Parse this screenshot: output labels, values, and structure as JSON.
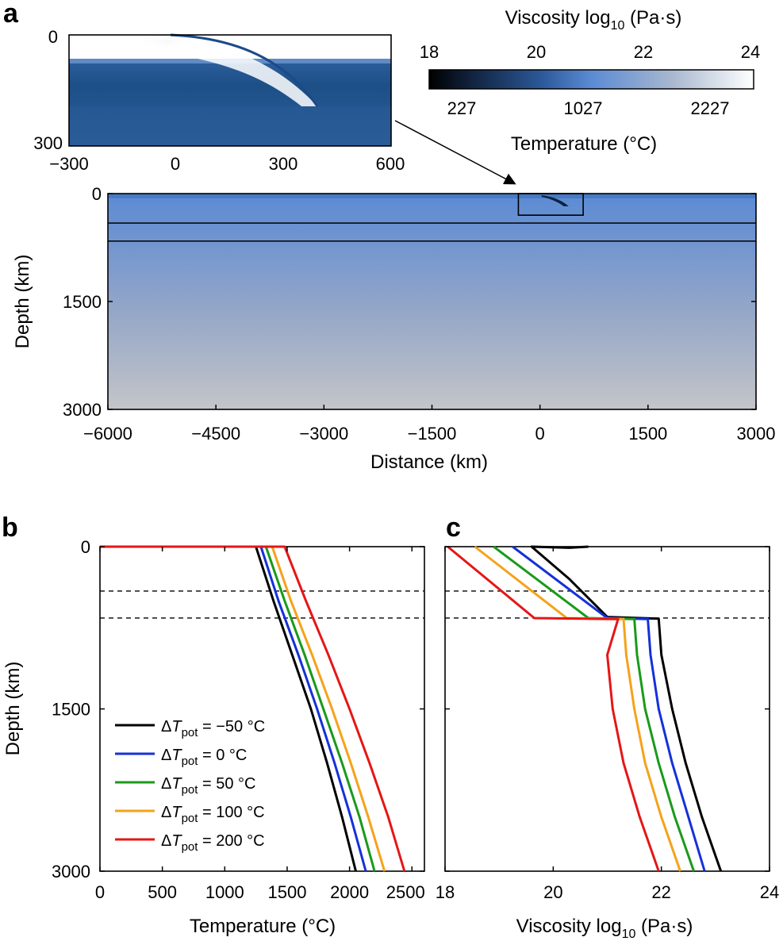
{
  "panels": {
    "a": "a",
    "b": "b",
    "c": "c"
  },
  "colors": {
    "t_minus50": "#000000",
    "t_0": "#1531d8",
    "t_50": "#1a9a1a",
    "t_100": "#f5a21b",
    "t_200": "#e51616",
    "mantle_top": "#5f8dd3",
    "mantle_bottom": "#c0c3c8"
  },
  "colorbar": {
    "title": "Viscosity log",
    "title_sub": "10",
    "title_unit": " (Pa·s)",
    "visc_ticks": [
      "18",
      "20",
      "22",
      "24"
    ],
    "temp_ticks": [
      "227",
      "1027",
      "2227"
    ],
    "temp_label": "Temperature (°C)"
  },
  "inset": {
    "yticks": [
      "0",
      "300"
    ],
    "xticks": [
      "−300",
      "0",
      "300",
      "600"
    ]
  },
  "main": {
    "ylabel": "Depth (km)",
    "xlabel": "Distance (km)",
    "yticks": [
      "0",
      "1500",
      "3000"
    ],
    "xticks": [
      "−6000",
      "−4500",
      "−3000",
      "−1500",
      "0",
      "1500",
      "3000"
    ]
  },
  "chart_data": [
    {
      "id": "b",
      "type": "line",
      "xlabel": "Temperature (°C)",
      "ylabel": "Depth (km)",
      "xlim": [
        0,
        2600
      ],
      "ylim": [
        3000,
        0
      ],
      "xticks": [
        "0",
        "500",
        "1000",
        "1500",
        "2000",
        "2500"
      ],
      "yticks": [
        "0",
        "1500",
        "3000"
      ],
      "dashed_depths_km": [
        410,
        660
      ],
      "series": [
        {
          "name": "ΔTpot = −50 °C",
          "legend_left": "Δ",
          "legend_T": "T",
          "legend_sub": "pot",
          "legend_right": " = −50 °C",
          "color_key": "t_minus50",
          "depth": [
            0,
            0,
            500,
            1000,
            1500,
            2000,
            2500,
            3000
          ],
          "temp": [
            0,
            1250,
            1390,
            1540,
            1690,
            1820,
            1940,
            2050
          ]
        },
        {
          "name": "ΔTpot = 0 °C",
          "legend_left": "Δ",
          "legend_T": "T",
          "legend_sub": "pot",
          "legend_right": " = 0 °C",
          "color_key": "t_0",
          "depth": [
            0,
            0,
            500,
            1000,
            1500,
            2000,
            2500,
            3000
          ],
          "temp": [
            0,
            1290,
            1430,
            1590,
            1740,
            1880,
            2010,
            2130
          ]
        },
        {
          "name": "ΔTpot = 50 °C",
          "legend_left": "Δ",
          "legend_T": "T",
          "legend_sub": "pot",
          "legend_right": " = 50 °C",
          "color_key": "t_50",
          "depth": [
            0,
            0,
            500,
            1000,
            1500,
            2000,
            2500,
            3000
          ],
          "temp": [
            0,
            1330,
            1480,
            1640,
            1790,
            1940,
            2080,
            2200
          ]
        },
        {
          "name": "ΔTpot = 100 °C",
          "legend_left": "Δ",
          "legend_T": "T",
          "legend_sub": "pot",
          "legend_right": " = 100 °C",
          "color_key": "t_100",
          "depth": [
            0,
            0,
            500,
            1000,
            1500,
            2000,
            2500,
            3000
          ],
          "temp": [
            0,
            1380,
            1530,
            1700,
            1860,
            2010,
            2150,
            2280
          ]
        },
        {
          "name": "ΔTpot = 200 °C",
          "legend_left": "Δ",
          "legend_T": "T",
          "legend_sub": "pot",
          "legend_right": " = 200 °C",
          "color_key": "t_200",
          "depth": [
            0,
            0,
            500,
            1000,
            1500,
            2000,
            2500,
            3000
          ],
          "temp": [
            0,
            1480,
            1650,
            1830,
            2000,
            2160,
            2310,
            2440
          ]
        }
      ]
    },
    {
      "id": "c",
      "type": "line",
      "xlabel": "Viscosity log",
      "xlabel_sub": "10",
      "xlabel_unit": " (Pa·s)",
      "xlim": [
        18,
        24
      ],
      "ylim": [
        3000,
        0
      ],
      "xticks": [
        "18",
        "20",
        "22",
        "24"
      ],
      "dashed_depths_km": [
        410,
        660
      ],
      "series": [
        {
          "name": "ΔTpot = −50 °C",
          "color_key": "t_minus50",
          "depth": [
            0,
            10,
            0,
            300,
            650,
            665,
            1000,
            1500,
            2000,
            2500,
            3000
          ],
          "visc": [
            20.65,
            20.3,
            19.6,
            20.3,
            21.0,
            21.95,
            22.0,
            22.2,
            22.45,
            22.75,
            23.1
          ]
        },
        {
          "name": "ΔTpot = 0 °C",
          "color_key": "t_0",
          "depth": [
            0,
            660,
            670,
            1000,
            1500,
            2000,
            2500,
            3000
          ],
          "visc": [
            19.25,
            21.0,
            21.75,
            21.8,
            21.95,
            22.2,
            22.5,
            22.8
          ]
        },
        {
          "name": "ΔTpot = 50 °C",
          "color_key": "t_50",
          "depth": [
            0,
            660,
            670,
            1000,
            1500,
            2000,
            2500,
            3000
          ],
          "visc": [
            18.9,
            20.65,
            21.5,
            21.55,
            21.7,
            21.95,
            22.25,
            22.6
          ]
        },
        {
          "name": "ΔTpot = 100 °C",
          "color_key": "t_100",
          "depth": [
            0,
            660,
            670,
            1000,
            1500,
            2000,
            2500,
            3000
          ],
          "visc": [
            18.55,
            20.25,
            21.3,
            21.35,
            21.5,
            21.7,
            22.0,
            22.35
          ]
        },
        {
          "name": "ΔTpot = 200 °C",
          "color_key": "t_200",
          "depth": [
            0,
            660,
            670,
            1000,
            1500,
            2000,
            2500,
            3000
          ],
          "visc": [
            18.05,
            19.65,
            21.2,
            21.0,
            21.1,
            21.3,
            21.6,
            21.95
          ]
        }
      ]
    },
    {
      "id": "a-main",
      "type": "heatmap",
      "xlabel": "Distance (km)",
      "ylabel": "Depth (km)",
      "xlim": [
        -6000,
        3000
      ],
      "ylim": [
        3000,
        0
      ],
      "boundary_depths_km": [
        410,
        660
      ],
      "zoom_box_km": {
        "x": [
          -300,
          600
        ],
        "depth": [
          0,
          300
        ]
      }
    }
  ]
}
